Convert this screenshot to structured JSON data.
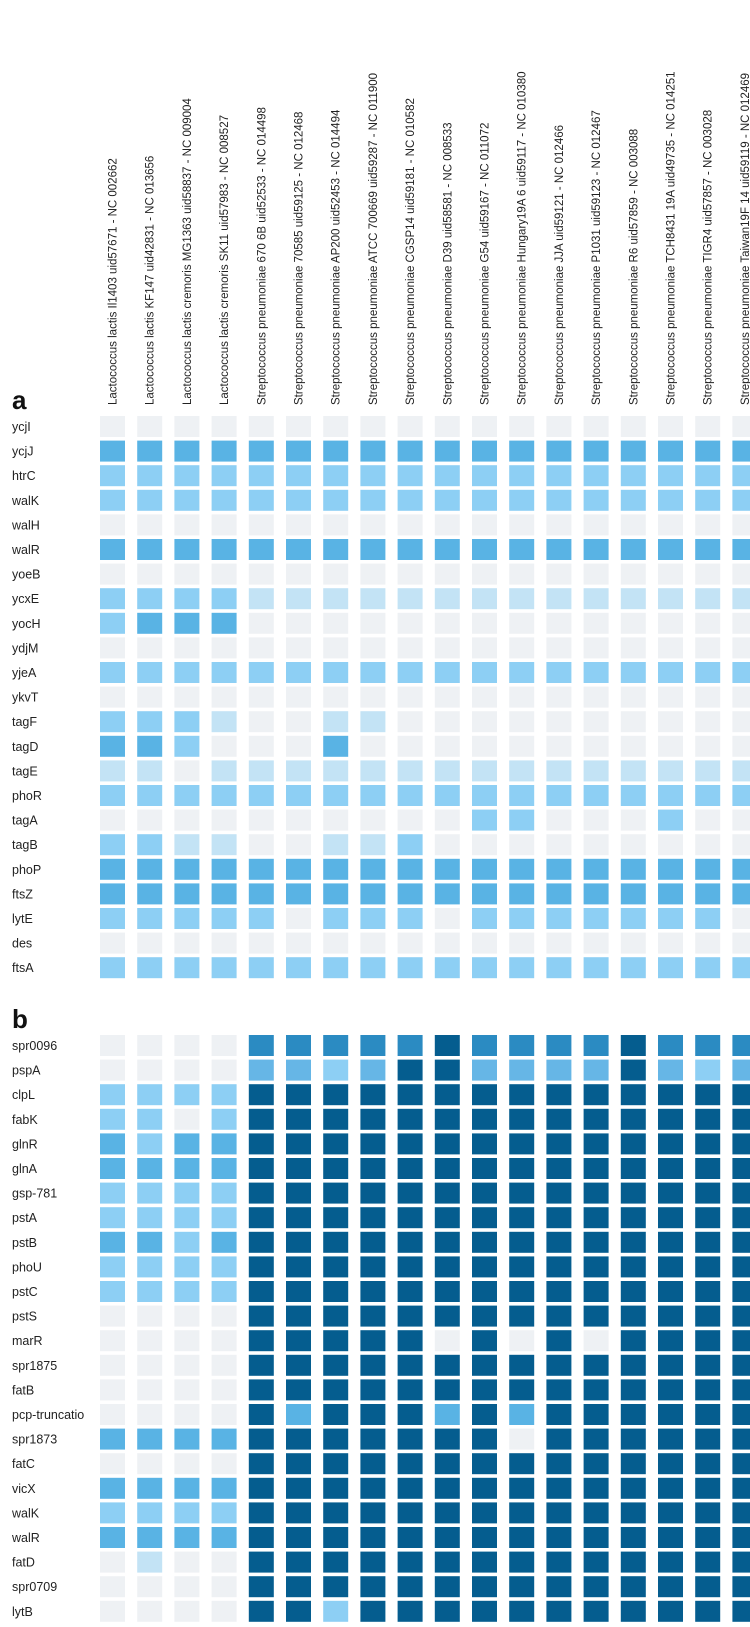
{
  "chart_data": [
    {
      "type": "heatmap",
      "panel_label": "a",
      "rows": [
        "ycjI",
        "ycjJ",
        "htrC",
        "walK",
        "walH",
        "walR",
        "yoeB",
        "ycxE",
        "yocH",
        "ydjM",
        "yjeA",
        "ykvT",
        "tagF",
        "tagD",
        "tagE",
        "phoR",
        "tagA",
        "tagB",
        "phoP",
        "ftsZ",
        "lytE",
        "des",
        "ftsA"
      ],
      "columns": [
        "Lactococcus lactis Il1403 uid57671 - NC 002662",
        "Lactococcus lactis KF147 uid42831 - NC 013656",
        "Lactococcus lactis cremoris MG1363 uid58837 - NC 009004",
        "Lactococcus lactis cremoris SK11 uid57983 - NC 008527",
        "Streptococcus pneumoniae 670 6B uid52533 - NC 014498",
        "Streptococcus pneumoniae 70585 uid59125 - NC 012468",
        "Streptococcus pneumoniae AP200 uid52453 - NC 014494",
        "Streptococcus pneumoniae ATCC 700669 uid59287 - NC 011900",
        "Streptococcus pneumoniae CGSP14 uid59181 - NC 010582",
        "Streptococcus pneumoniae D39 uid58581 - NC 008533",
        "Streptococcus pneumoniae G54 uid59167 - NC 011072",
        "Streptococcus pneumoniae Hungary19A 6 uid59117 - NC 010380",
        "Streptococcus pneumoniae JJA uid59121 - NC 012466",
        "Streptococcus pneumoniae P1031 uid59123 - NC 012467",
        "Streptococcus pneumoniae R6 uid57859 - NC 003088",
        "Streptococcus pneumoniae TCH8431 19A uid49735 - NC 014251",
        "Streptococcus pneumoniae TIGR4 uid57857 - NC 003028",
        "Streptococcus pneumoniae Taiwan19F 14 uid59119 - NC 012469"
      ],
      "values": [
        [
          0,
          0,
          0,
          0,
          0,
          0,
          0,
          0,
          0,
          0,
          0,
          0,
          0,
          0,
          0,
          0,
          0,
          0
        ],
        [
          3,
          3,
          3,
          3,
          3,
          3,
          3,
          3,
          3,
          3,
          3,
          3,
          3,
          3,
          3,
          3,
          3,
          3
        ],
        [
          2,
          2,
          2,
          2,
          2,
          2,
          2,
          2,
          2,
          2,
          2,
          2,
          2,
          2,
          2,
          2,
          2,
          2
        ],
        [
          2,
          2,
          2,
          2,
          2,
          2,
          2,
          2,
          2,
          2,
          2,
          2,
          2,
          2,
          2,
          2,
          2,
          2
        ],
        [
          0,
          0,
          0,
          0,
          0,
          0,
          0,
          0,
          0,
          0,
          0,
          0,
          0,
          0,
          0,
          0,
          0,
          0
        ],
        [
          3,
          3,
          3,
          3,
          3,
          3,
          3,
          3,
          3,
          3,
          3,
          3,
          3,
          3,
          3,
          3,
          3,
          3
        ],
        [
          0,
          0,
          0,
          0,
          0,
          0,
          0,
          0,
          0,
          0,
          0,
          0,
          0,
          0,
          0,
          0,
          0,
          0
        ],
        [
          2,
          2,
          2,
          2,
          1,
          1,
          1,
          1,
          1,
          1,
          1,
          1,
          1,
          1,
          1,
          1,
          1,
          1
        ],
        [
          2,
          3,
          3,
          3,
          0,
          0,
          0,
          0,
          0,
          0,
          0,
          0,
          0,
          0,
          0,
          0,
          0,
          0
        ],
        [
          0,
          0,
          0,
          0,
          0,
          0,
          0,
          0,
          0,
          0,
          0,
          0,
          0,
          0,
          0,
          0,
          0,
          0
        ],
        [
          2,
          2,
          2,
          2,
          2,
          2,
          2,
          2,
          2,
          2,
          2,
          2,
          2,
          2,
          2,
          2,
          2,
          2
        ],
        [
          0,
          0,
          0,
          0,
          0,
          0,
          0,
          0,
          0,
          0,
          0,
          0,
          0,
          0,
          0,
          0,
          0,
          0
        ],
        [
          2,
          2,
          2,
          1,
          0,
          0,
          1,
          1,
          0,
          0,
          0,
          0,
          0,
          0,
          0,
          0,
          0,
          0
        ],
        [
          3,
          3,
          2,
          0,
          0,
          0,
          3,
          0,
          0,
          0,
          0,
          0,
          0,
          0,
          0,
          0,
          0,
          0
        ],
        [
          1,
          1,
          0,
          1,
          1,
          1,
          1,
          1,
          1,
          1,
          1,
          1,
          1,
          1,
          1,
          1,
          1,
          1
        ],
        [
          2,
          2,
          2,
          2,
          2,
          2,
          2,
          2,
          2,
          2,
          2,
          2,
          2,
          2,
          2,
          2,
          2,
          2
        ],
        [
          0,
          0,
          0,
          0,
          0,
          0,
          0,
          0,
          0,
          0,
          2,
          2,
          0,
          0,
          0,
          2,
          0,
          0
        ],
        [
          2,
          2,
          1,
          1,
          0,
          0,
          1,
          1,
          2,
          0,
          0,
          0,
          0,
          0,
          0,
          0,
          0,
          0
        ],
        [
          3,
          3,
          3,
          3,
          3,
          3,
          3,
          3,
          3,
          3,
          3,
          3,
          3,
          3,
          3,
          3,
          3,
          3
        ],
        [
          3,
          3,
          3,
          3,
          3,
          3,
          3,
          3,
          3,
          3,
          3,
          3,
          3,
          3,
          3,
          3,
          3,
          3
        ],
        [
          2,
          2,
          2,
          2,
          2,
          0,
          2,
          2,
          2,
          0,
          2,
          2,
          2,
          2,
          2,
          2,
          2,
          0
        ],
        [
          0,
          0,
          0,
          0,
          0,
          0,
          0,
          0,
          0,
          0,
          0,
          0,
          0,
          0,
          0,
          0,
          0,
          0
        ],
        [
          2,
          2,
          2,
          2,
          2,
          2,
          2,
          2,
          2,
          2,
          2,
          2,
          2,
          2,
          2,
          2,
          2,
          2
        ]
      ]
    },
    {
      "type": "heatmap",
      "panel_label": "b",
      "rows": [
        "spr0096",
        "pspA",
        "clpL",
        "fabK",
        "glnR",
        "glnA",
        "gsp-781",
        "pstA",
        "pstB",
        "phoU",
        "pstC",
        "pstS",
        "marR",
        "spr1875",
        "fatB",
        "pcp-truncatio",
        "spr1873",
        "fatC",
        "vicX",
        "walK",
        "walR",
        "fatD",
        "spr0709",
        "lytB"
      ],
      "values": [
        [
          0,
          0,
          0,
          0,
          5,
          5,
          5,
          5,
          5,
          6,
          5,
          5,
          5,
          5,
          6,
          5,
          5,
          5
        ],
        [
          0,
          0,
          0,
          0,
          4,
          4,
          2,
          4,
          6,
          6,
          4,
          4,
          4,
          4,
          6,
          4,
          2,
          4
        ],
        [
          2,
          2,
          2,
          2,
          6,
          6,
          6,
          6,
          6,
          6,
          6,
          6,
          6,
          6,
          6,
          6,
          6,
          6
        ],
        [
          2,
          2,
          0,
          2,
          6,
          6,
          6,
          6,
          6,
          6,
          6,
          6,
          6,
          6,
          6,
          6,
          6,
          6
        ],
        [
          3,
          2,
          3,
          3,
          6,
          6,
          6,
          6,
          6,
          6,
          6,
          6,
          6,
          6,
          6,
          6,
          6,
          6
        ],
        [
          3,
          3,
          3,
          3,
          6,
          6,
          6,
          6,
          6,
          6,
          6,
          6,
          6,
          6,
          6,
          6,
          6,
          6
        ],
        [
          2,
          2,
          2,
          2,
          6,
          6,
          6,
          6,
          6,
          6,
          6,
          6,
          6,
          6,
          6,
          6,
          6,
          6
        ],
        [
          2,
          2,
          2,
          2,
          6,
          6,
          6,
          6,
          6,
          6,
          6,
          6,
          6,
          6,
          6,
          6,
          6,
          6
        ],
        [
          3,
          3,
          2,
          3,
          6,
          6,
          6,
          6,
          6,
          6,
          6,
          6,
          6,
          6,
          6,
          6,
          6,
          6
        ],
        [
          2,
          2,
          2,
          2,
          6,
          6,
          6,
          6,
          6,
          6,
          6,
          6,
          6,
          6,
          6,
          6,
          6,
          6
        ],
        [
          2,
          2,
          2,
          2,
          6,
          6,
          6,
          6,
          6,
          6,
          6,
          6,
          6,
          6,
          6,
          6,
          6,
          6
        ],
        [
          0,
          0,
          0,
          0,
          6,
          6,
          6,
          6,
          6,
          6,
          6,
          6,
          6,
          6,
          6,
          6,
          6,
          6
        ],
        [
          0,
          0,
          0,
          0,
          6,
          6,
          6,
          6,
          6,
          0,
          6,
          0,
          6,
          0,
          6,
          6,
          6,
          6
        ],
        [
          0,
          0,
          0,
          0,
          6,
          6,
          6,
          6,
          6,
          6,
          6,
          6,
          6,
          6,
          6,
          6,
          6,
          6
        ],
        [
          0,
          0,
          0,
          0,
          6,
          6,
          6,
          6,
          6,
          6,
          6,
          6,
          6,
          6,
          6,
          6,
          6,
          6
        ],
        [
          0,
          0,
          0,
          0,
          6,
          3,
          6,
          6,
          6,
          3,
          6,
          3,
          6,
          6,
          6,
          6,
          6,
          6
        ],
        [
          3,
          3,
          3,
          3,
          6,
          6,
          6,
          6,
          6,
          6,
          6,
          0,
          6,
          6,
          6,
          6,
          6,
          6
        ],
        [
          0,
          0,
          0,
          0,
          6,
          6,
          6,
          6,
          6,
          6,
          6,
          6,
          6,
          6,
          6,
          6,
          6,
          6
        ],
        [
          3,
          3,
          3,
          3,
          6,
          6,
          6,
          6,
          6,
          6,
          6,
          6,
          6,
          6,
          6,
          6,
          6,
          6
        ],
        [
          2,
          2,
          2,
          2,
          6,
          6,
          6,
          6,
          6,
          6,
          6,
          6,
          6,
          6,
          6,
          6,
          6,
          6
        ],
        [
          3,
          3,
          3,
          3,
          6,
          6,
          6,
          6,
          6,
          6,
          6,
          6,
          6,
          6,
          6,
          6,
          6,
          6
        ],
        [
          0,
          1,
          0,
          0,
          6,
          6,
          6,
          6,
          6,
          6,
          6,
          6,
          6,
          6,
          6,
          6,
          6,
          6
        ],
        [
          0,
          0,
          0,
          0,
          6,
          6,
          6,
          6,
          6,
          6,
          6,
          6,
          6,
          6,
          6,
          6,
          6,
          6
        ],
        [
          0,
          0,
          0,
          0,
          6,
          6,
          2,
          6,
          6,
          6,
          6,
          6,
          6,
          6,
          6,
          6,
          6,
          6
        ]
      ]
    }
  ],
  "palette": [
    "#eef1f4",
    "#c3e3f5",
    "#8dcff4",
    "#59b3e4",
    "#66b6e6",
    "#2b8bc2",
    "#055d8f"
  ]
}
